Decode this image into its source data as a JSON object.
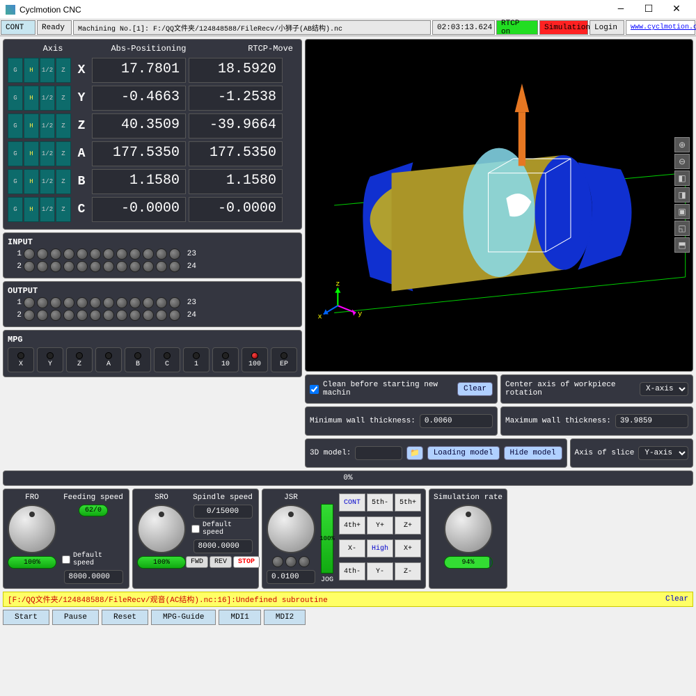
{
  "window": {
    "title": "Cyclmotion CNC"
  },
  "toolbar": {
    "cont": "CONT",
    "ready": "Ready",
    "file": "Machining No.[1]: F:/QQ文件夹/124848588/FileRecv/小狮子(AB结构).nc",
    "time": "02:03:13.624",
    "rtcp": "RTCP on",
    "sim": "Simulation",
    "login": "Login",
    "link": "www.cyclmotion.c"
  },
  "axis": {
    "h1": "Axis",
    "h2": "Abs-Positioning",
    "h3": "RTCP-Move",
    "btns": [
      "G",
      "H",
      "1/2",
      "Z"
    ],
    "rows": [
      {
        "label": "X",
        "abs": "17.7801",
        "rtcp": "18.5920"
      },
      {
        "label": "Y",
        "abs": "-0.4663",
        "rtcp": "-1.2538"
      },
      {
        "label": "Z",
        "abs": "40.3509",
        "rtcp": "-39.9664"
      },
      {
        "label": "A",
        "abs": "177.5350",
        "rtcp": "177.5350"
      },
      {
        "label": "B",
        "abs": "1.1580",
        "rtcp": "1.1580"
      },
      {
        "label": "C",
        "abs": "-0.0000",
        "rtcp": "-0.0000"
      }
    ]
  },
  "io": {
    "input": "INPUT",
    "output": "OUTPUT",
    "r1a": "1",
    "r1b": "23",
    "r2a": "2",
    "r2b": "24"
  },
  "mpg": {
    "title": "MPG",
    "btns": [
      "X",
      "Y",
      "Z",
      "A",
      "B",
      "C",
      "1",
      "10",
      "100",
      "EP"
    ],
    "hot": 8
  },
  "opts": {
    "clean": "Clean before starting new machin",
    "clear": "Clear",
    "center": "Center axis of workpiece rotation",
    "center_val": "X-axis",
    "minwall": "Minimum wall thickness:",
    "minwall_val": "0.0060",
    "maxwall": "Maximum wall thickness:",
    "maxwall_val": "39.9859",
    "model": "3D model:",
    "load": "Loading model",
    "hide": "Hide model",
    "slice": "Axis of slice",
    "slice_val": "Y-axis"
  },
  "progress": "0%",
  "fro": {
    "title": "FRO",
    "pct": "100%"
  },
  "feed": {
    "title": "Feeding speed",
    "val": "62/0",
    "def": "Default speed",
    "defval": "8000.0000"
  },
  "sro": {
    "title": "SRO",
    "pct": "100%"
  },
  "spindle": {
    "title": "Spindle speed",
    "val": "0/15000",
    "def": "Default speed",
    "defval": "8000.0000",
    "fwd": "FWD",
    "rev": "REV",
    "stop": "STOP"
  },
  "jsr": {
    "title": "JSR",
    "pct": "100%",
    "jog": "JOG",
    "val": "0.0100"
  },
  "jog": {
    "btns": [
      "CONT",
      "5th-",
      "5th+",
      "4th+",
      "Y+",
      "Z+",
      "X-",
      "High",
      "X+",
      "4th-",
      "Y-",
      "Z-"
    ]
  },
  "simrate": {
    "title": "Simulation rate",
    "pct": "94%"
  },
  "error": {
    "msg": "[F:/QQ文件夹/124848588/FileRecv/观音(AC结构).nc:16]:Undefined subroutine",
    "clear": "Clear"
  },
  "tabs": [
    "Start",
    "Pause",
    "Reset",
    "MPG-Guide",
    "MDI1",
    "MDI2"
  ]
}
